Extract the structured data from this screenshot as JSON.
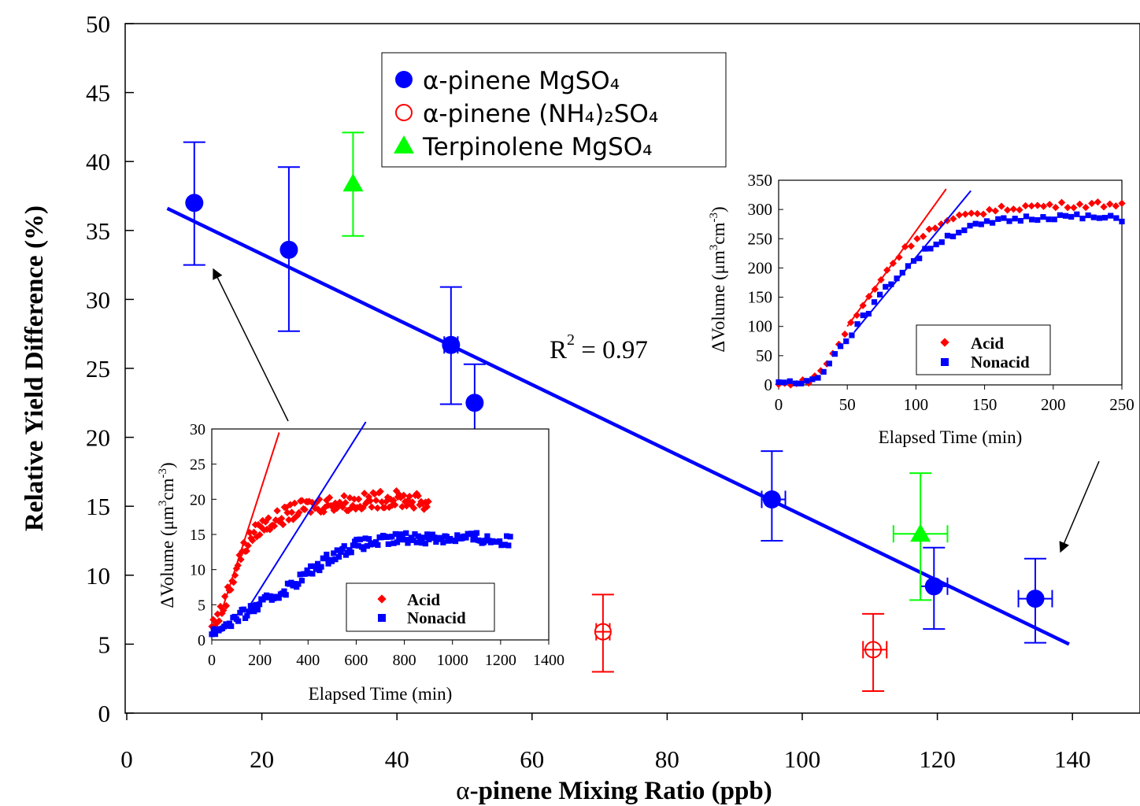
{
  "chart_data": [
    {
      "type": "scatter",
      "role": "main",
      "xlabel_greek": "α",
      "xlabel_rest": "-pinene Mixing Ratio (ppb)",
      "ylabel": "Relative Yield Difference (%)",
      "xlim": [
        0,
        150
      ],
      "ylim": [
        0,
        50
      ],
      "xticks": [
        0,
        20,
        40,
        60,
        80,
        100,
        120,
        140
      ],
      "yticks": [
        0,
        5,
        10,
        15,
        20,
        25,
        30,
        35,
        40,
        45,
        50
      ],
      "grid": false,
      "legend_position": "top-center",
      "series": [
        {
          "name": "α-pinene MgSO₄",
          "marker": "filled-circle",
          "color": "#0000ff",
          "points": [
            {
              "x": 10,
              "y": 37.0,
              "yerr": [
                32.5,
                41.4
              ],
              "xerr": null
            },
            {
              "x": 24,
              "y": 33.6,
              "yerr": [
                27.7,
                39.6
              ],
              "xerr": null
            },
            {
              "x": 48,
              "y": 26.7,
              "yerr": [
                22.4,
                30.9
              ],
              "xerr": [
                47,
                49
              ]
            },
            {
              "x": 51.5,
              "y": 22.5,
              "yerr": [
                19.7,
                25.3
              ],
              "xerr": null
            },
            {
              "x": 95.5,
              "y": 15.5,
              "yerr": [
                12.5,
                19.0
              ],
              "xerr": [
                94,
                97.5
              ]
            },
            {
              "x": 119.5,
              "y": 9.2,
              "yerr": [
                6.1,
                12.0
              ],
              "xerr": [
                117.5,
                121.5
              ]
            },
            {
              "x": 134.5,
              "y": 8.3,
              "yerr": [
                5.1,
                11.2
              ],
              "xerr": [
                132,
                137
              ]
            }
          ]
        },
        {
          "name": "α-pinene (NH₄)₂SO₄",
          "marker": "open-circle",
          "color": "#ff0000",
          "points": [
            {
              "x": 70.5,
              "y": 5.9,
              "yerr": [
                3.0,
                8.6
              ],
              "xerr": [
                69.5,
                71.5
              ]
            },
            {
              "x": 110.5,
              "y": 4.6,
              "yerr": [
                1.6,
                7.2
              ],
              "xerr": [
                109,
                112.5
              ]
            }
          ]
        },
        {
          "name": "Terpinolene MgSO₄",
          "marker": "filled-triangle",
          "color": "#00ff00",
          "points": [
            {
              "x": 33.5,
              "y": 38.4,
              "yerr": [
                34.6,
                42.1
              ],
              "xerr": null
            },
            {
              "x": 117.5,
              "y": 13.0,
              "yerr": [
                8.2,
                17.4
              ],
              "xerr": [
                113.5,
                121.5
              ]
            }
          ]
        }
      ],
      "fit_line": {
        "x": [
          6,
          139.5
        ],
        "y": [
          36.6,
          5.0
        ],
        "color": "#0000ff"
      },
      "annotation": {
        "base": "R",
        "sup": "2",
        "rest": " = 0.97"
      }
    },
    {
      "type": "scatter",
      "role": "inset-right",
      "xlabel": "Elapsed Time (min)",
      "ylabel_prefix": "ΔVolume (μm",
      "ylabel_sup1": "3",
      "ylabel_mid": "cm",
      "ylabel_sup2": "-3",
      "ylabel_suffix": ")",
      "xlim": [
        0,
        250
      ],
      "ylim": [
        0,
        350
      ],
      "xticks": [
        0,
        50,
        100,
        150,
        200,
        250
      ],
      "yticks": [
        0,
        50,
        100,
        150,
        200,
        250,
        300,
        350
      ],
      "legend_position": "bottom-right",
      "series": [
        {
          "name": "Acid",
          "marker": "diamond",
          "color": "#ff0000",
          "curve": [
            [
              0,
              0
            ],
            [
              20,
              5
            ],
            [
              30,
              20
            ],
            [
              40,
              55
            ],
            [
              50,
              95
            ],
            [
              60,
              130
            ],
            [
              70,
              165
            ],
            [
              80,
              200
            ],
            [
              90,
              228
            ],
            [
              100,
              250
            ],
            [
              110,
              265
            ],
            [
              120,
              275
            ],
            [
              130,
              285
            ],
            [
              140,
              292
            ],
            [
              150,
              297
            ],
            [
              160,
              300
            ],
            [
              170,
              303
            ],
            [
              180,
              305
            ],
            [
              190,
              306
            ],
            [
              200,
              307
            ],
            [
              210,
              308
            ],
            [
              220,
              308
            ],
            [
              230,
              309
            ],
            [
              240,
              309
            ],
            [
              250,
              310
            ]
          ]
        },
        {
          "name": "Nonacid",
          "marker": "square",
          "color": "#0000ff",
          "curve": [
            [
              0,
              0
            ],
            [
              20,
              5
            ],
            [
              30,
              18
            ],
            [
              40,
              50
            ],
            [
              50,
              80
            ],
            [
              60,
              110
            ],
            [
              70,
              140
            ],
            [
              80,
              170
            ],
            [
              90,
              195
            ],
            [
              100,
              215
            ],
            [
              110,
              235
            ],
            [
              120,
              250
            ],
            [
              130,
              262
            ],
            [
              140,
              270
            ],
            [
              150,
              275
            ],
            [
              160,
              280
            ],
            [
              170,
              283
            ],
            [
              180,
              285
            ],
            [
              190,
              287
            ],
            [
              200,
              288
            ],
            [
              210,
              288
            ],
            [
              220,
              287
            ],
            [
              230,
              286
            ],
            [
              240,
              285
            ],
            [
              250,
              284
            ]
          ]
        }
      ],
      "fit_lines": [
        {
          "color": "#ff0000",
          "x": [
            50,
            122
          ],
          "y": [
            100,
            335
          ]
        },
        {
          "color": "#0000ff",
          "x": [
            55,
            140
          ],
          "y": [
            90,
            332
          ]
        }
      ]
    },
    {
      "type": "scatter",
      "role": "inset-left",
      "xlabel": "Elapsed Time (min)",
      "ylabel_prefix": "ΔVolume (μm",
      "ylabel_sup1": "3",
      "ylabel_mid": "cm",
      "ylabel_sup2": "-3",
      "ylabel_suffix": ")",
      "xlim": [
        0,
        1400
      ],
      "ylim": [
        0,
        30
      ],
      "xticks": [
        0,
        200,
        400,
        600,
        800,
        1000,
        1200,
        1400
      ],
      "yticks": [
        0,
        5,
        10,
        15,
        20,
        25,
        30
      ],
      "legend_position": "bottom-right",
      "series": [
        {
          "name": "Acid",
          "marker": "diamond",
          "color": "#ff0000",
          "curve": [
            [
              0,
              2
            ],
            [
              40,
              4
            ],
            [
              80,
              8
            ],
            [
              120,
              12
            ],
            [
              160,
              14.5
            ],
            [
              200,
              16
            ],
            [
              260,
              17
            ],
            [
              320,
              18
            ],
            [
              400,
              19
            ],
            [
              500,
              19.5
            ],
            [
              600,
              19.5
            ],
            [
              700,
              20
            ],
            [
              800,
              20
            ],
            [
              900,
              19.5
            ]
          ]
        },
        {
          "name": "Nonacid",
          "marker": "square",
          "color": "#0000ff",
          "curve": [
            [
              0,
              1
            ],
            [
              100,
              3
            ],
            [
              200,
              5
            ],
            [
              300,
              7
            ],
            [
              400,
              9.5
            ],
            [
              500,
              12
            ],
            [
              600,
              13.5
            ],
            [
              700,
              14
            ],
            [
              800,
              14.5
            ],
            [
              900,
              14.5
            ],
            [
              1000,
              14.5
            ],
            [
              1100,
              14.5
            ],
            [
              1200,
              14
            ],
            [
              1240,
              14
            ]
          ]
        }
      ],
      "fit_lines": [
        {
          "color": "#ff0000",
          "x": [
            40,
            280
          ],
          "y": [
            4,
            29.5
          ]
        },
        {
          "color": "#0000ff",
          "x": [
            160,
            640
          ],
          "y": [
            5,
            31
          ]
        }
      ]
    }
  ]
}
